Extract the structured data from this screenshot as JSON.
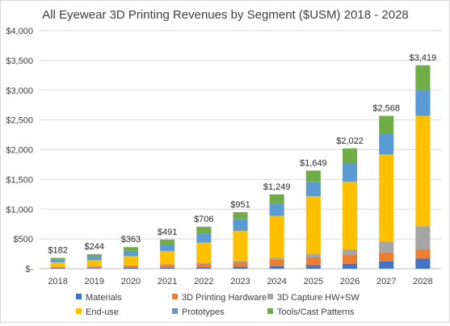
{
  "chart_data": {
    "type": "bar",
    "stacked": true,
    "title": "All Eyewear 3D Printing Revenues by Segment ($USM) 2018 - 2028",
    "xlabel": "",
    "ylabel": "",
    "ylim": [
      0,
      4000
    ],
    "y_ticks": [
      0,
      500,
      1000,
      1500,
      2000,
      2500,
      3000,
      3500,
      4000
    ],
    "y_tick_labels": [
      "$-",
      "$500",
      "$1,000",
      "$1,500",
      "$2,000",
      "$2,500",
      "$3,000",
      "$3,500",
      "$4,000"
    ],
    "grid": true,
    "legend_position": "bottom",
    "categories": [
      "2018",
      "2019",
      "2020",
      "2021",
      "2022",
      "2023",
      "2024",
      "2025",
      "2026",
      "2027",
      "2028"
    ],
    "series": [
      {
        "name": "Materials",
        "color": "#4472c4",
        "values": [
          8,
          10,
          14,
          18,
          25,
          33,
          45,
          60,
          85,
          125,
          170
        ]
      },
      {
        "name": "3D Printing Hardware",
        "color": "#ed7d31",
        "values": [
          20,
          25,
          34,
          44,
          60,
          80,
          105,
          130,
          145,
          150,
          155
        ]
      },
      {
        "name": "3D Capture HW+SW",
        "color": "#a5a5a5",
        "values": [
          3,
          5,
          8,
          12,
          18,
          25,
          35,
          60,
          95,
          180,
          390
        ]
      },
      {
        "name": "End-use",
        "color": "#ffc000",
        "values": [
          79,
          104,
          157,
          221,
          335,
          497,
          705,
          970,
          1140,
          1465,
          1855
        ]
      },
      {
        "name": "Prototypes",
        "color": "#5b9bd5",
        "values": [
          42,
          60,
          88,
          112,
          150,
          196,
          204,
          234,
          305,
          345,
          430
        ]
      },
      {
        "name": "Tools/Cast Patterns",
        "color": "#70ad47",
        "values": [
          30,
          40,
          62,
          84,
          118,
          120,
          155,
          195,
          252,
          303,
          419
        ]
      }
    ],
    "totals": [
      182,
      244,
      363,
      491,
      706,
      951,
      1249,
      1649,
      2022,
      2568,
      3419
    ],
    "total_labels": [
      "$182",
      "$244",
      "$363",
      "$491",
      "$706",
      "$951",
      "$1,249",
      "$1,649",
      "$2,022",
      "$2,568",
      "$3,419"
    ]
  }
}
